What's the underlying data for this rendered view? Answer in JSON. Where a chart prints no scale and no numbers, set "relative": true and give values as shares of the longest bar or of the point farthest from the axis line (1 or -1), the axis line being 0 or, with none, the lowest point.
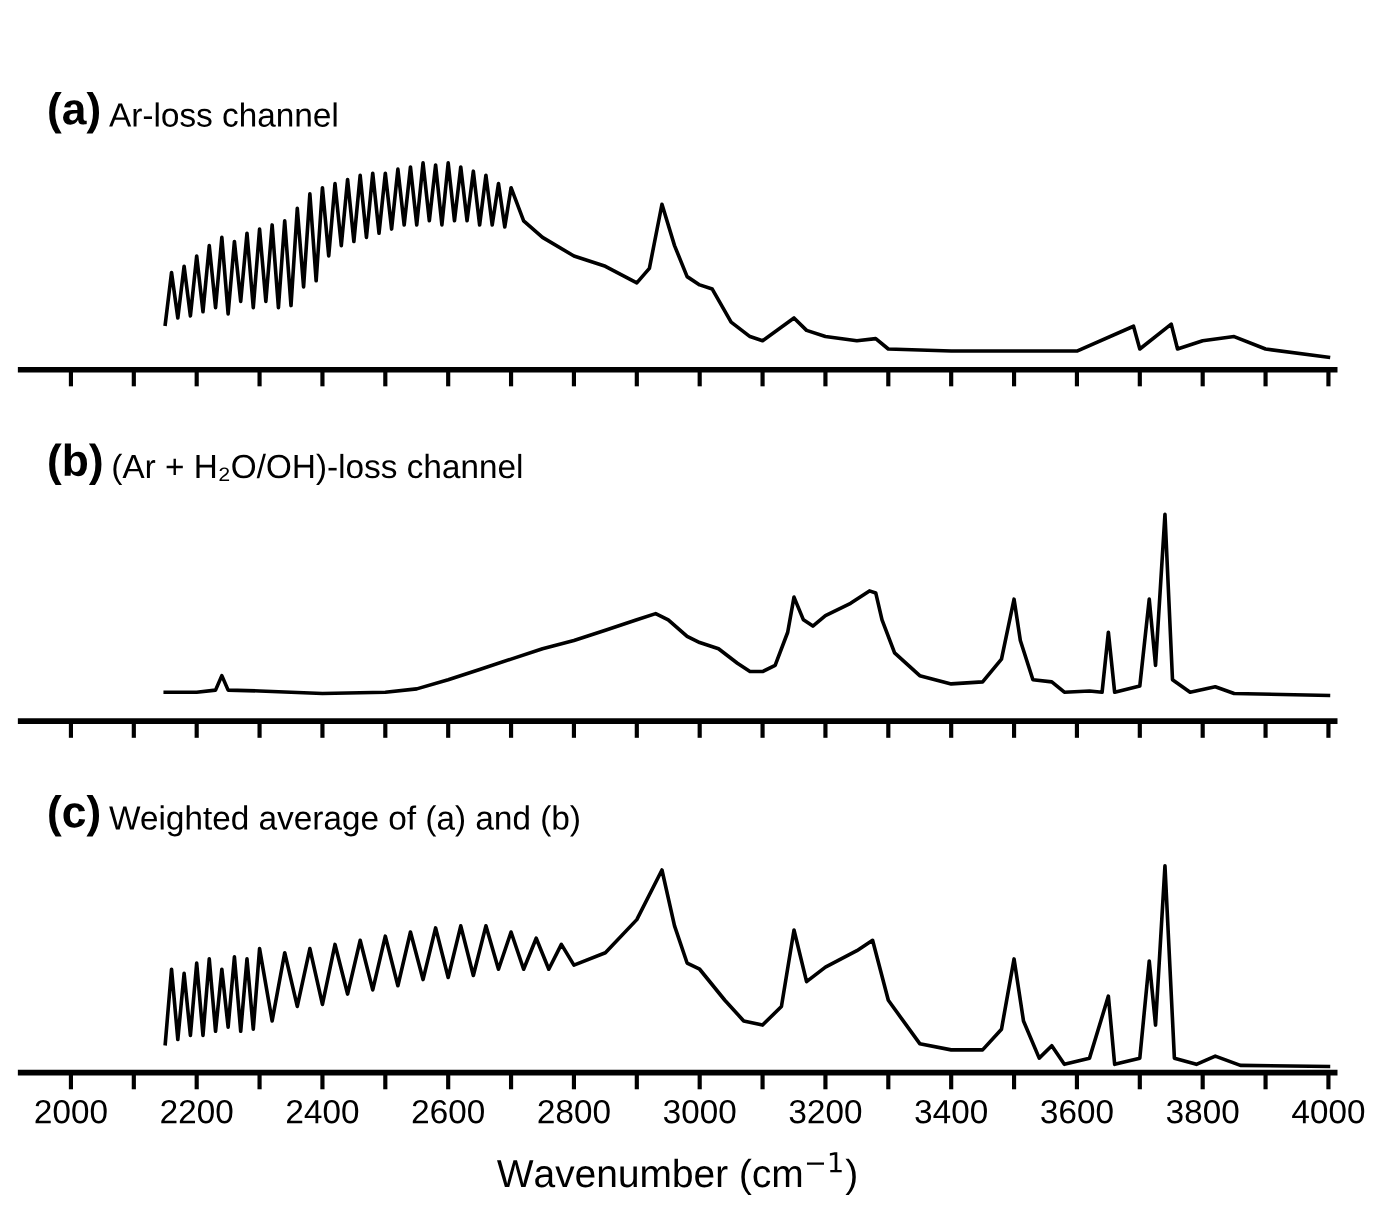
{
  "chart_data": [
    {
      "type": "line",
      "title": "(a) Ar-loss channel",
      "relative": true,
      "tick_labels": false,
      "color": "#000000",
      "xlim": [
        1920,
        4010
      ],
      "xticks": [
        2000,
        {
          "value": 2100,
          "label": null
        },
        2200,
        {
          "value": 2300,
          "label": null
        },
        2400,
        {
          "value": 2500,
          "label": null
        },
        2600,
        {
          "value": 2700,
          "label": null
        },
        2800,
        {
          "value": 2900,
          "label": null
        },
        3000,
        {
          "value": 3100,
          "label": null
        },
        3200,
        {
          "value": 3300,
          "label": null
        },
        3400,
        {
          "value": 3500,
          "label": null
        },
        3600,
        {
          "value": 3700,
          "label": null
        },
        3800,
        {
          "value": 3900,
          "label": null
        },
        4000
      ],
      "x": [
        2150,
        2160,
        2170,
        2180,
        2190,
        2200,
        2210,
        2220,
        2230,
        2240,
        2250,
        2260,
        2270,
        2280,
        2290,
        2300,
        2310,
        2320,
        2330,
        2340,
        2350,
        2360,
        2370,
        2380,
        2390,
        2400,
        2410,
        2420,
        2430,
        2440,
        2450,
        2460,
        2470,
        2480,
        2490,
        2500,
        2510,
        2520,
        2530,
        2540,
        2550,
        2560,
        2570,
        2580,
        2590,
        2600,
        2610,
        2620,
        2630,
        2640,
        2650,
        2660,
        2670,
        2680,
        2690,
        2700,
        2720,
        2750,
        2800,
        2850,
        2900,
        2920,
        2940,
        2960,
        2980,
        3000,
        3020,
        3050,
        3080,
        3100,
        3150,
        3170,
        3200,
        3250,
        3280,
        3300,
        3350,
        3400,
        3500,
        3600,
        3690,
        3700,
        3750,
        3760,
        3800,
        3850,
        3900,
        4000
      ],
      "values": [
        0.22,
        0.47,
        0.25,
        0.5,
        0.26,
        0.55,
        0.28,
        0.6,
        0.3,
        0.64,
        0.27,
        0.62,
        0.33,
        0.66,
        0.3,
        0.68,
        0.33,
        0.7,
        0.3,
        0.72,
        0.31,
        0.78,
        0.4,
        0.85,
        0.43,
        0.88,
        0.55,
        0.9,
        0.6,
        0.92,
        0.62,
        0.94,
        0.64,
        0.95,
        0.66,
        0.95,
        0.68,
        0.97,
        0.7,
        0.98,
        0.7,
        1.0,
        0.72,
        0.99,
        0.7,
        1.0,
        0.72,
        0.98,
        0.72,
        0.96,
        0.7,
        0.94,
        0.7,
        0.9,
        0.69,
        0.88,
        0.72,
        0.64,
        0.55,
        0.5,
        0.42,
        0.49,
        0.8,
        0.6,
        0.45,
        0.41,
        0.39,
        0.23,
        0.16,
        0.14,
        0.25,
        0.19,
        0.16,
        0.14,
        0.15,
        0.1,
        0.095,
        0.09,
        0.09,
        0.09,
        0.21,
        0.1,
        0.22,
        0.1,
        0.14,
        0.16,
        0.1,
        0.06
      ]
    },
    {
      "type": "line",
      "title": "(b) (Ar + H₂O/OH)-loss channel",
      "relative": true,
      "tick_labels": false,
      "color": "#000000",
      "xlim": [
        1920,
        4010
      ],
      "xticks": [
        2000,
        {
          "value": 2100,
          "label": null
        },
        2200,
        {
          "value": 2300,
          "label": null
        },
        2400,
        {
          "value": 2500,
          "label": null
        },
        2600,
        {
          "value": 2700,
          "label": null
        },
        2800,
        {
          "value": 2900,
          "label": null
        },
        3000,
        {
          "value": 3100,
          "label": null
        },
        3200,
        {
          "value": 3300,
          "label": null
        },
        3400,
        {
          "value": 3500,
          "label": null
        },
        3600,
        {
          "value": 3700,
          "label": null
        },
        3800,
        {
          "value": 3900,
          "label": null
        },
        4000
      ],
      "x": [
        2150,
        2200,
        2230,
        2240,
        2250,
        2300,
        2400,
        2500,
        2550,
        2600,
        2650,
        2700,
        2750,
        2800,
        2850,
        2900,
        2930,
        2950,
        2980,
        3000,
        3030,
        3060,
        3080,
        3100,
        3120,
        3140,
        3150,
        3165,
        3180,
        3200,
        3240,
        3270,
        3280,
        3290,
        3310,
        3350,
        3400,
        3450,
        3480,
        3500,
        3510,
        3530,
        3560,
        3580,
        3620,
        3640,
        3650,
        3660,
        3700,
        3715,
        3725,
        3740,
        3752,
        3780,
        3820,
        3850,
        4000
      ],
      "values": [
        0.14,
        0.14,
        0.15,
        0.22,
        0.15,
        0.146,
        0.134,
        0.14,
        0.156,
        0.2,
        0.25,
        0.3,
        0.35,
        0.39,
        0.44,
        0.49,
        0.52,
        0.49,
        0.41,
        0.38,
        0.35,
        0.28,
        0.24,
        0.24,
        0.27,
        0.43,
        0.6,
        0.49,
        0.46,
        0.51,
        0.57,
        0.63,
        0.62,
        0.49,
        0.33,
        0.22,
        0.18,
        0.19,
        0.3,
        0.59,
        0.39,
        0.2,
        0.19,
        0.14,
        0.146,
        0.14,
        0.43,
        0.14,
        0.17,
        0.59,
        0.27,
        1.0,
        0.2,
        0.14,
        0.166,
        0.134,
        0.124
      ]
    },
    {
      "type": "line",
      "title": "(c) Weighted average of (a) and (b)",
      "relative": true,
      "xlabel": "Wavenumber (cm$^{−1}$)",
      "color": "#000000",
      "xlim": [
        1920,
        4010
      ],
      "xticks": [
        2000,
        {
          "value": 2100,
          "label": null
        },
        2200,
        {
          "value": 2300,
          "label": null
        },
        2400,
        {
          "value": 2500,
          "label": null
        },
        2600,
        {
          "value": 2700,
          "label": null
        },
        2800,
        {
          "value": 2900,
          "label": null
        },
        3000,
        {
          "value": 3100,
          "label": null
        },
        3200,
        {
          "value": 3300,
          "label": null
        },
        3400,
        {
          "value": 3500,
          "label": null
        },
        3600,
        {
          "value": 3700,
          "label": null
        },
        3800,
        {
          "value": 3900,
          "label": null
        },
        4000
      ],
      "x": [
        2150,
        2160,
        2170,
        2180,
        2190,
        2200,
        2210,
        2220,
        2230,
        2240,
        2250,
        2260,
        2270,
        2280,
        2290,
        2300,
        2320,
        2340,
        2360,
        2380,
        2400,
        2420,
        2440,
        2460,
        2480,
        2500,
        2520,
        2540,
        2560,
        2580,
        2600,
        2620,
        2640,
        2660,
        2680,
        2700,
        2720,
        2740,
        2760,
        2780,
        2800,
        2850,
        2900,
        2940,
        2960,
        2980,
        3000,
        3040,
        3070,
        3100,
        3130,
        3150,
        3170,
        3200,
        3250,
        3275,
        3300,
        3350,
        3400,
        3450,
        3480,
        3500,
        3515,
        3540,
        3560,
        3580,
        3620,
        3650,
        3660,
        3700,
        3715,
        3725,
        3740,
        3755,
        3790,
        3820,
        3860,
        4000
      ],
      "values": [
        0.14,
        0.5,
        0.16,
        0.48,
        0.18,
        0.53,
        0.18,
        0.55,
        0.2,
        0.5,
        0.22,
        0.56,
        0.2,
        0.55,
        0.21,
        0.6,
        0.25,
        0.58,
        0.32,
        0.6,
        0.33,
        0.62,
        0.38,
        0.64,
        0.4,
        0.66,
        0.42,
        0.68,
        0.45,
        0.7,
        0.46,
        0.71,
        0.47,
        0.71,
        0.5,
        0.68,
        0.5,
        0.65,
        0.5,
        0.62,
        0.52,
        0.58,
        0.74,
        0.98,
        0.71,
        0.53,
        0.5,
        0.35,
        0.25,
        0.23,
        0.32,
        0.69,
        0.44,
        0.51,
        0.59,
        0.64,
        0.35,
        0.14,
        0.11,
        0.11,
        0.21,
        0.55,
        0.25,
        0.07,
        0.13,
        0.04,
        0.07,
        0.37,
        0.04,
        0.07,
        0.54,
        0.23,
        1.0,
        0.07,
        0.04,
        0.08,
        0.035,
        0.03
      ]
    }
  ]
}
